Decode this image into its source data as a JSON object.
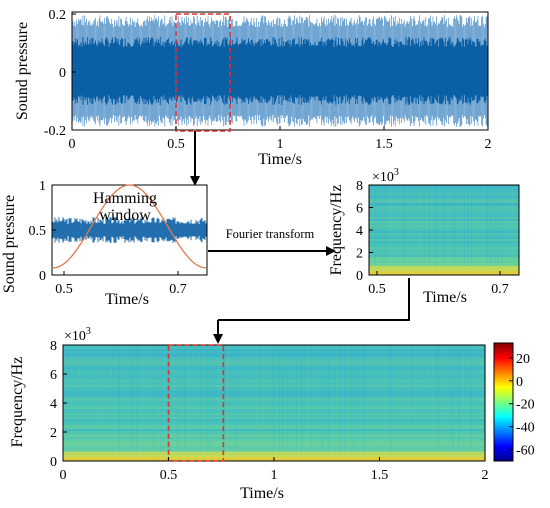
{
  "colors": {
    "waveform": "#0b5fa5",
    "waveform_light": "#4f8fc7",
    "highlight": "#e0302f",
    "window_curve": "#e07a4f",
    "arrow": "#000000"
  },
  "top_plot": {
    "ylabel": "Sound pressure",
    "xlabel": "Time/s",
    "yticks": [
      "0.2",
      "0",
      "-0.2"
    ],
    "xticks": [
      "0",
      "0.5",
      "1",
      "1.5",
      "2"
    ],
    "xlim": [
      0,
      2
    ],
    "ylim": [
      -0.2,
      0.2
    ],
    "highlight_window": [
      0.5,
      0.76
    ]
  },
  "window_plot": {
    "ylabel": "Sound pressure",
    "xlabel": "Time/s",
    "yticks": [
      "1",
      "0.5",
      "0"
    ],
    "xticks": [
      "0.5",
      "0.7"
    ],
    "annotation_line1": "Hamming",
    "annotation_line2": "window"
  },
  "transform_label": "Fourier transform",
  "small_spectrogram": {
    "ylabel": "Frequency/Hz",
    "xlabel": "Time/s",
    "multiplier_base": "×10",
    "multiplier_exp": "3",
    "yticks": [
      "8",
      "6",
      "4",
      "2",
      "0"
    ],
    "xticks": [
      "0.5",
      "0.7"
    ]
  },
  "bottom_spectrogram": {
    "ylabel": "Frequency/Hz",
    "xlabel": "Time/s",
    "multiplier_base": "×10",
    "multiplier_exp": "3",
    "yticks": [
      "8",
      "6",
      "4",
      "2",
      "0"
    ],
    "xticks": [
      "0",
      "0.5",
      "1",
      "1.5",
      "2"
    ],
    "xlim": [
      0,
      2
    ],
    "highlight_window": [
      0.5,
      0.76
    ]
  },
  "colorbar": {
    "ticks": [
      "20",
      "0",
      "-20",
      "-40",
      "-60"
    ],
    "range": [
      -70,
      33
    ]
  }
}
